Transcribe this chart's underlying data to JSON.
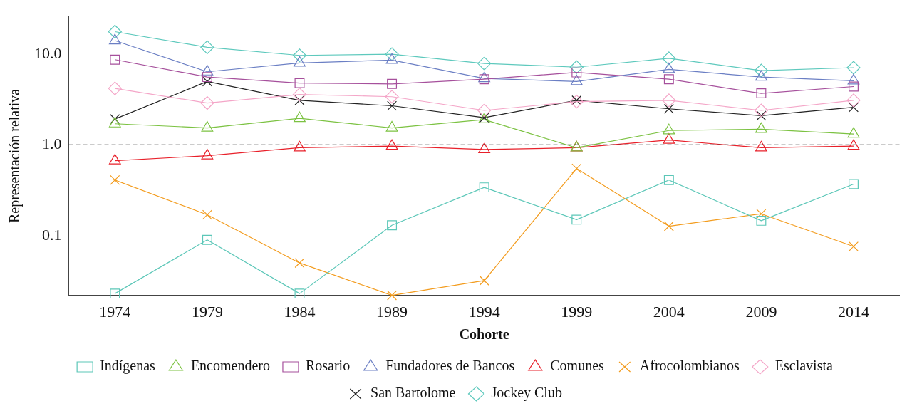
{
  "chart_data": {
    "type": "line",
    "xlabel": "Cohorte",
    "ylabel": "Representación relativa",
    "categories": [
      "1974",
      "1979",
      "1984",
      "1989",
      "1994",
      "1999",
      "2004",
      "2009",
      "2014"
    ],
    "log": "y",
    "ylim": [
      0.022,
      26
    ],
    "yticks": [
      {
        "value": 0.1,
        "label": "0.1"
      },
      {
        "value": 1,
        "label": "1.0"
      },
      {
        "value": 10,
        "label": "10.0"
      }
    ],
    "grid": false,
    "legend": "bottom",
    "line_style": "solid",
    "ref_lines": [
      {
        "axis": "y",
        "value": 1,
        "line_style": "dashed",
        "color": "#333333"
      }
    ],
    "series": [
      {
        "name": "Indígenas",
        "color": "#5cc7b8",
        "marker": "square",
        "values": [
          0.023,
          0.09,
          0.023,
          0.13,
          0.34,
          0.15,
          0.41,
          0.146,
          0.37
        ]
      },
      {
        "name": "Encomendero",
        "color": "#7cc242",
        "marker": "triangle",
        "values": [
          1.71,
          1.54,
          1.96,
          1.54,
          1.9,
          0.93,
          1.44,
          1.49,
          1.32
        ]
      },
      {
        "name": "Rosario",
        "color": "#a6509c",
        "marker": "square",
        "values": [
          8.7,
          5.6,
          4.8,
          4.7,
          5.3,
          6.3,
          5.3,
          3.7,
          4.4
        ]
      },
      {
        "name": "Fundadores de Bancos",
        "color": "#6b7fc4",
        "marker": "triangle",
        "values": [
          14.1,
          6.4,
          8.0,
          8.6,
          5.4,
          5.0,
          6.8,
          5.6,
          5.1
        ]
      },
      {
        "name": "Comunes",
        "color": "#e8202a",
        "marker": "triangle",
        "values": [
          0.67,
          0.76,
          0.93,
          0.97,
          0.89,
          0.93,
          1.13,
          0.93,
          0.97
        ]
      },
      {
        "name": "Afrocolombianos",
        "color": "#f39c1e",
        "marker": "cross",
        "values": [
          0.41,
          0.17,
          0.05,
          0.022,
          0.032,
          0.55,
          0.127,
          0.174,
          0.076
        ]
      },
      {
        "name": "Esclavista",
        "color": "#f4a6c8",
        "marker": "diamond",
        "values": [
          4.2,
          2.9,
          3.6,
          3.4,
          2.4,
          3.0,
          3.1,
          2.4,
          3.1
        ]
      },
      {
        "name": "San Bartolome",
        "color": "#222222",
        "marker": "cross",
        "values": [
          1.93,
          5.0,
          3.1,
          2.7,
          2.0,
          3.1,
          2.5,
          2.1,
          2.6
        ]
      },
      {
        "name": "Jockey Club",
        "color": "#5ec9bd",
        "marker": "diamond",
        "values": [
          17.7,
          11.9,
          9.7,
          10.0,
          7.9,
          7.2,
          9.0,
          6.6,
          7.1
        ]
      }
    ]
  }
}
